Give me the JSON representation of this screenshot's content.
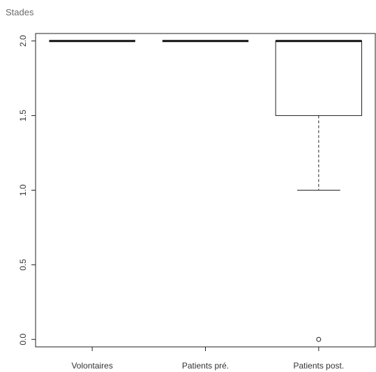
{
  "chart_data": {
    "type": "box",
    "title": "Stades",
    "xlabel": "",
    "ylabel": "",
    "ylim": [
      -0.05,
      2.05
    ],
    "yticks": [
      0.0,
      0.5,
      1.0,
      1.5,
      2.0
    ],
    "ytick_labels": [
      "0.0",
      "0.5",
      "1.0",
      "1.5",
      "2.0"
    ],
    "categories": [
      "Volontaires",
      "Patients pré.",
      "Patients post."
    ],
    "boxes": [
      {
        "category": "Volontaires",
        "min": 2.0,
        "q1": 2.0,
        "median": 2.0,
        "q3": 2.0,
        "max": 2.0,
        "outliers": []
      },
      {
        "category": "Patients pré.",
        "min": 2.0,
        "q1": 2.0,
        "median": 2.0,
        "q3": 2.0,
        "max": 2.0,
        "outliers": []
      },
      {
        "category": "Patients post.",
        "min": 1.0,
        "q1": 1.5,
        "median": 2.0,
        "q3": 2.0,
        "max": 2.0,
        "outliers": [
          0.0
        ]
      }
    ],
    "grid": false
  }
}
